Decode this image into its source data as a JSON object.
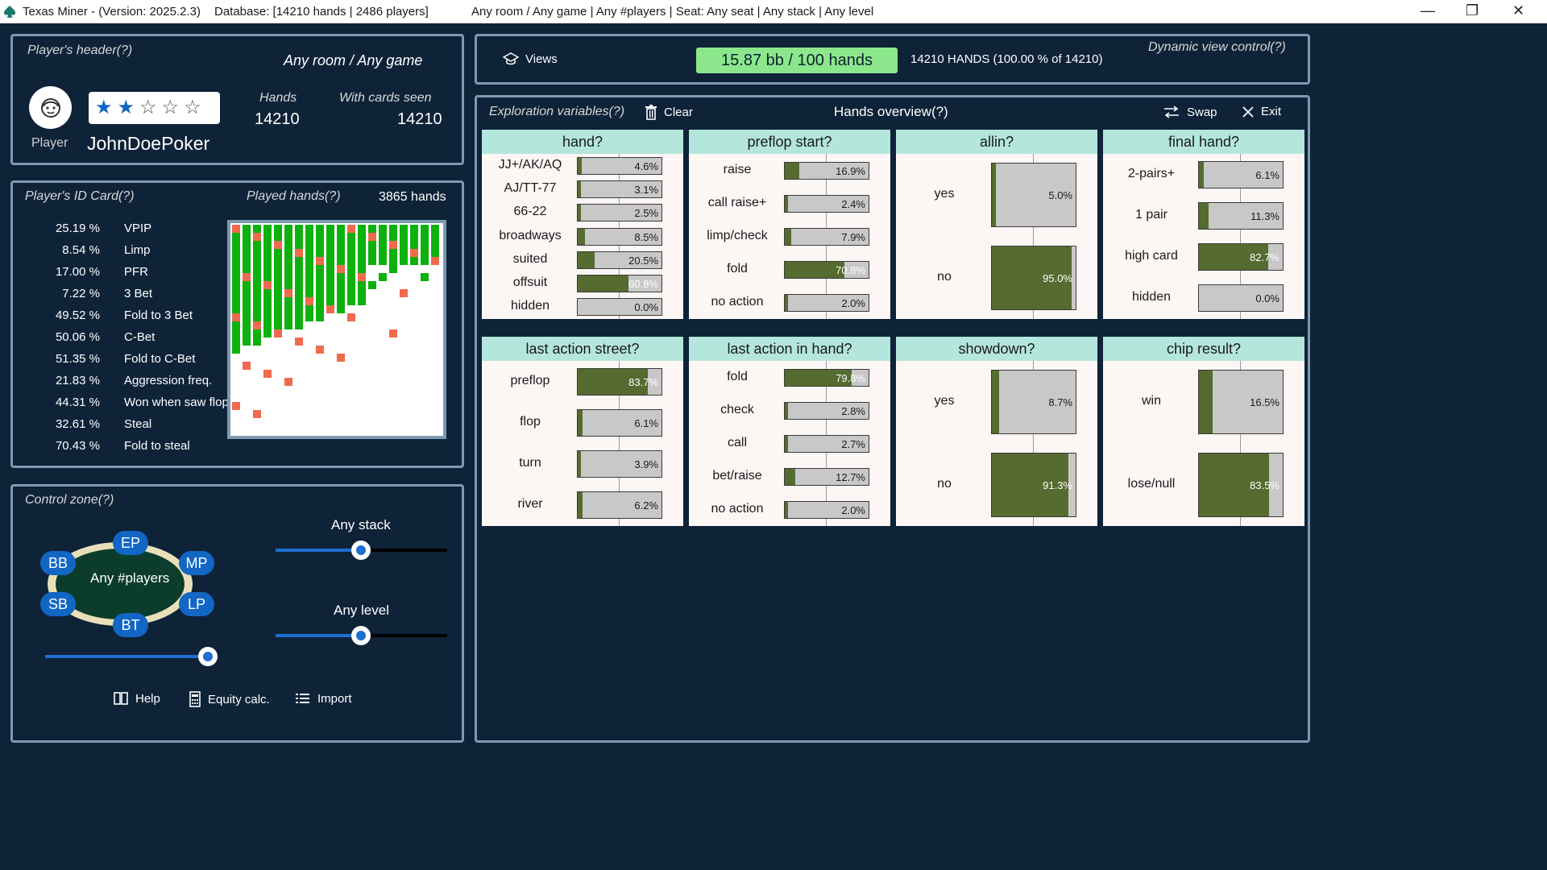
{
  "titlebar": {
    "app": "Texas Miner - (Version: 2025.2.3)",
    "database": "Database: [14210 hands | 2486 players]",
    "filter": "Any room / Any game  |  Any #players  |  Seat: Any seat  |  Any stack  |  Any level",
    "minimize": "—",
    "maximize": "❐",
    "close": "✕"
  },
  "header": {
    "title": "Player's header(?)",
    "room": "Any room / Any game",
    "hands_label": "Hands",
    "hands_value": "14210",
    "cards_label": "With cards seen",
    "cards_value": "14210",
    "player_label": "Player",
    "player_name": "JohnDoePoker",
    "stars_filled": 2,
    "stars_total": 5
  },
  "idcard": {
    "title": "Player's ID Card(?)",
    "played_label": "Played hands(?)",
    "played_value": "3865 hands",
    "stats": [
      {
        "value": "25.19 %",
        "label": "VPIP"
      },
      {
        "value": "8.54 %",
        "label": "Limp"
      },
      {
        "value": "17.00 %",
        "label": "PFR"
      },
      {
        "value": "7.22 %",
        "label": "3 Bet"
      },
      {
        "value": "49.52 %",
        "label": "Fold to 3 Bet"
      },
      {
        "value": "50.06 %",
        "label": "C-Bet"
      },
      {
        "value": "51.35 %",
        "label": "Fold to C-Bet"
      },
      {
        "value": "21.83 %",
        "label": "Aggression freq."
      },
      {
        "value": "44.31 %",
        "label": "Won when saw flop"
      },
      {
        "value": "32.61 %",
        "label": "Steal"
      },
      {
        "value": "70.43 %",
        "label": "Fold to steal"
      }
    ]
  },
  "control": {
    "title": "Control zone(?)",
    "table_label": "Any #players",
    "seats": [
      "EP",
      "BB",
      "MP",
      "SB",
      "LP",
      "BT"
    ],
    "stack_label": "Any stack",
    "level_label": "Any level",
    "help": "Help",
    "equity": "Equity calc.",
    "import": "Import"
  },
  "views": {
    "views_label": "Views",
    "winrate": "15.87 bb / 100 hands",
    "hands_info": "14210 HANDS (100.00 % of 14210)",
    "dynamic": "Dynamic view control(?)"
  },
  "overview": {
    "explore": "Exploration variables(?)",
    "clear": "Clear",
    "title": "Hands overview(?)",
    "swap": "Swap",
    "exit": "Exit",
    "cards": [
      {
        "title": "hand?",
        "rows": [
          {
            "label": "JJ+/AK/AQ",
            "pct": "4.6%",
            "frac": 0.046
          },
          {
            "label": "AJ/TT-77",
            "pct": "3.1%",
            "frac": 0.031
          },
          {
            "label": "66-22",
            "pct": "2.5%",
            "frac": 0.025
          },
          {
            "label": "broadways",
            "pct": "8.5%",
            "frac": 0.085
          },
          {
            "label": "suited",
            "pct": "20.5%",
            "frac": 0.205
          },
          {
            "label": "offsuit",
            "pct": "60.8%",
            "frac": 0.608
          },
          {
            "label": "hidden",
            "pct": "0.0%",
            "frac": 0.0
          }
        ]
      },
      {
        "title": "preflop start?",
        "rows": [
          {
            "label": "raise",
            "pct": "16.9%",
            "frac": 0.169
          },
          {
            "label": "call raise+",
            "pct": "2.4%",
            "frac": 0.024
          },
          {
            "label": "limp/check",
            "pct": "7.9%",
            "frac": 0.079
          },
          {
            "label": "fold",
            "pct": "70.8%",
            "frac": 0.708
          },
          {
            "label": "no action",
            "pct": "2.0%",
            "frac": 0.02
          }
        ]
      },
      {
        "title": "allin?",
        "rows": [
          {
            "label": "yes",
            "pct": "5.0%",
            "frac": 0.05
          },
          {
            "label": "no",
            "pct": "95.0%",
            "frac": 0.95
          }
        ]
      },
      {
        "title": "final hand?",
        "rows": [
          {
            "label": "2-pairs+",
            "pct": "6.1%",
            "frac": 0.061
          },
          {
            "label": "1 pair",
            "pct": "11.3%",
            "frac": 0.113
          },
          {
            "label": "high card",
            "pct": "82.7%",
            "frac": 0.827
          },
          {
            "label": "hidden",
            "pct": "0.0%",
            "frac": 0.0
          }
        ]
      },
      {
        "title": "last action street?",
        "rows": [
          {
            "label": "preflop",
            "pct": "83.7%",
            "frac": 0.837
          },
          {
            "label": "flop",
            "pct": "6.1%",
            "frac": 0.061
          },
          {
            "label": "turn",
            "pct": "3.9%",
            "frac": 0.039
          },
          {
            "label": "river",
            "pct": "6.2%",
            "frac": 0.062
          }
        ]
      },
      {
        "title": "last action in hand?",
        "rows": [
          {
            "label": "fold",
            "pct": "79.8%",
            "frac": 0.798
          },
          {
            "label": "check",
            "pct": "2.8%",
            "frac": 0.028
          },
          {
            "label": "call",
            "pct": "2.7%",
            "frac": 0.027
          },
          {
            "label": "bet/raise",
            "pct": "12.7%",
            "frac": 0.127
          },
          {
            "label": "no action",
            "pct": "2.0%",
            "frac": 0.02
          }
        ]
      },
      {
        "title": "showdown?",
        "rows": [
          {
            "label": "yes",
            "pct": "8.7%",
            "frac": 0.087
          },
          {
            "label": "no",
            "pct": "91.3%",
            "frac": 0.913
          }
        ]
      },
      {
        "title": "chip result?",
        "rows": [
          {
            "label": "win",
            "pct": "16.5%",
            "frac": 0.165
          },
          {
            "label": "lose/null",
            "pct": "83.5%",
            "frac": 0.835
          }
        ]
      }
    ]
  },
  "colors": {
    "background": "#0e2338",
    "panel_border": "#7d9ab3",
    "bar_fill": "#556b2f",
    "bar_bg": "#c8c8c8",
    "card_header": "#b4e6dc",
    "accent_blue": "#1266c4",
    "winrate_green": "#8ce78c",
    "heat_green": "#0db10d",
    "heat_red": "#f06a50"
  }
}
